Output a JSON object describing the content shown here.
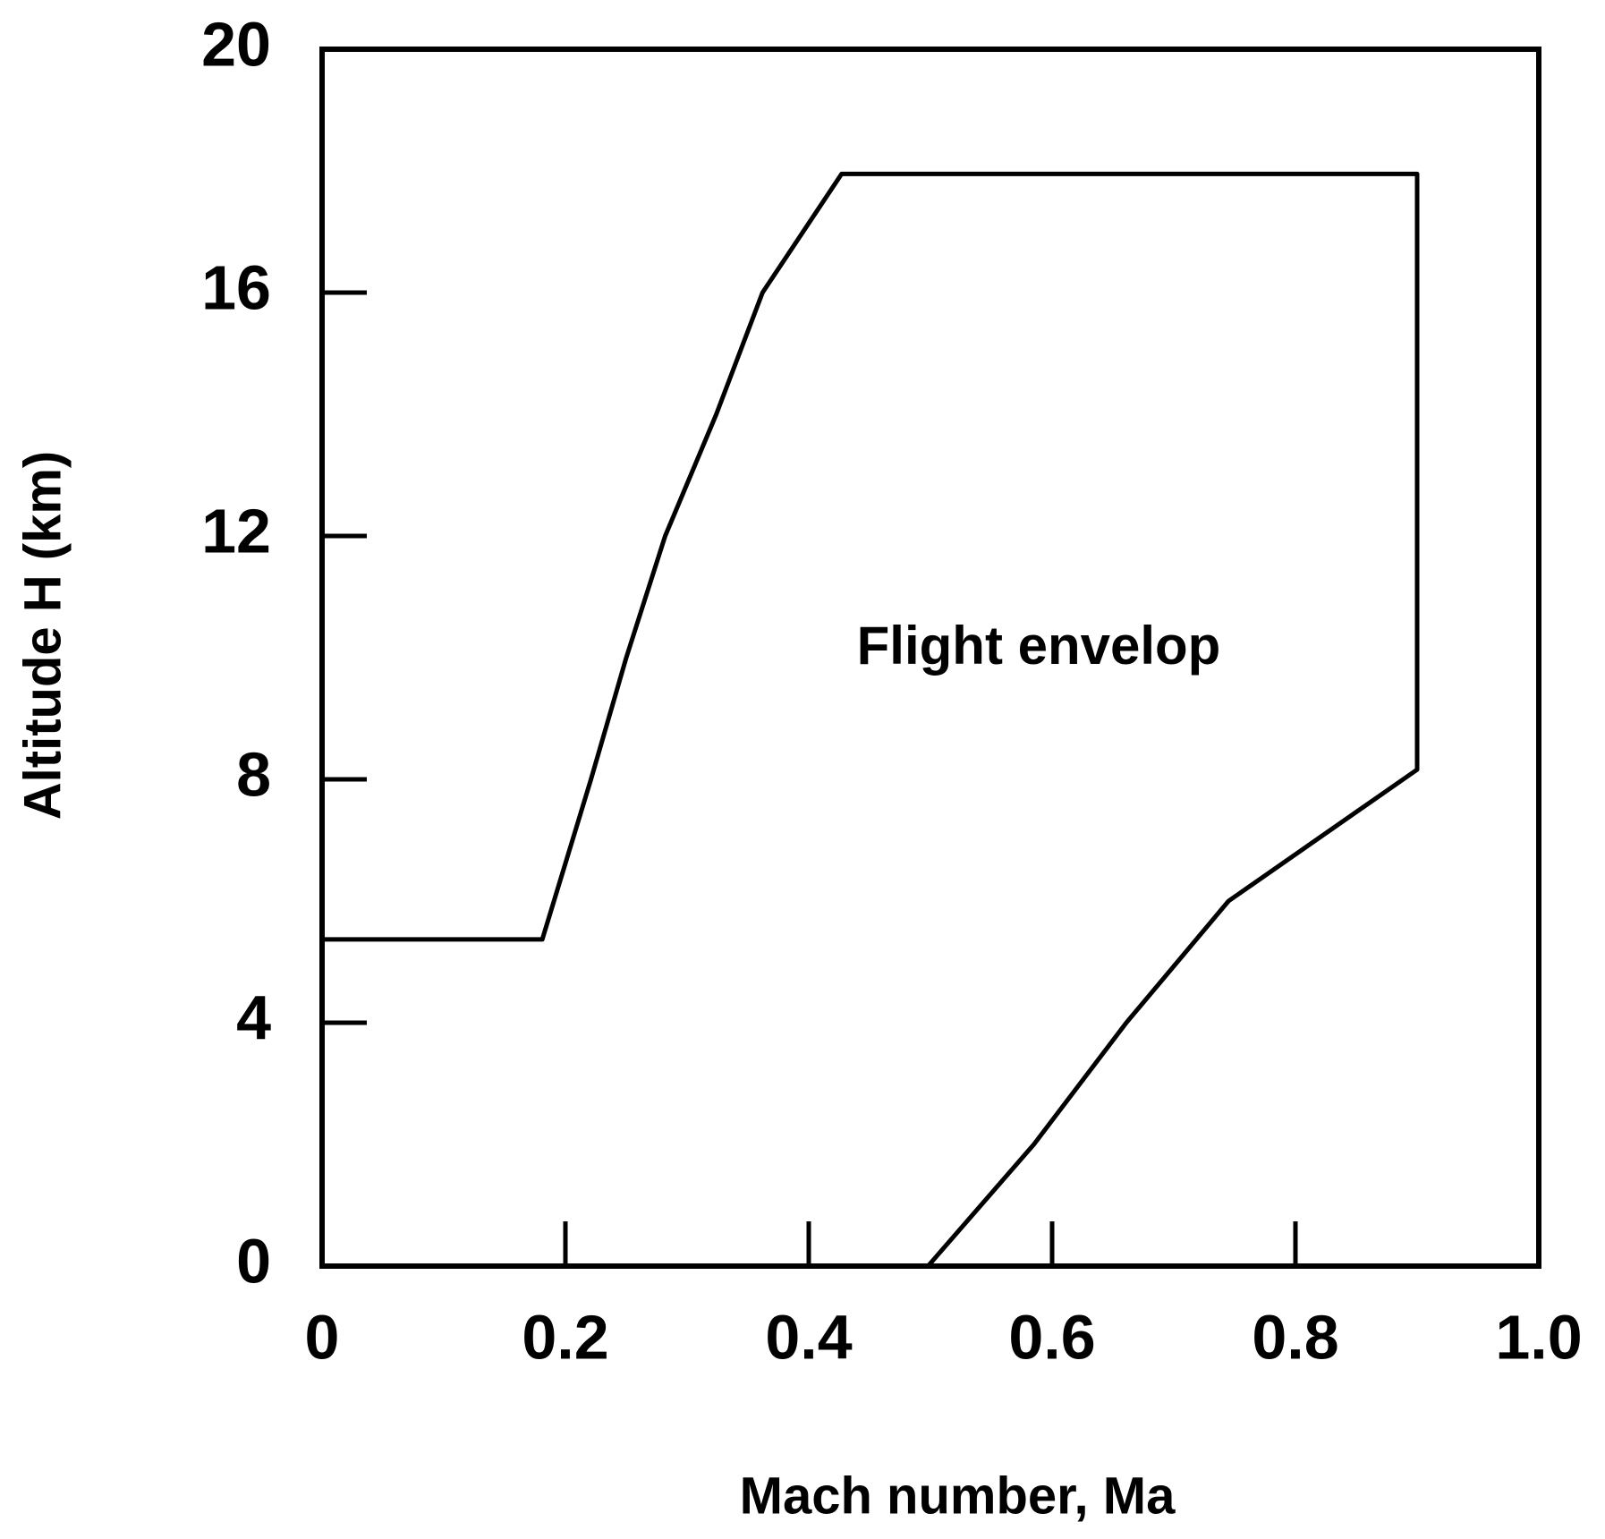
{
  "chart_data": {
    "type": "line",
    "x_label": "Mach number, Ma",
    "y_label": "Altitude H (km)",
    "annotation": "Flight envelop",
    "series": [
      {
        "color": "#000000",
        "x": [
          0,
          0.181,
          0.221,
          0.25,
          0.282,
          0.324,
          0.362,
          0.427,
          0.9,
          0.9,
          0.745,
          0.661,
          0.585,
          0.498
        ],
        "values": [
          5.37,
          5.37,
          8,
          10,
          12,
          14,
          16,
          17.95,
          17.95,
          8.16,
          6,
          4,
          2,
          0
        ]
      }
    ],
    "xlim": [
      0,
      1
    ],
    "ylim": [
      0,
      20
    ],
    "xticks": [
      0,
      0.2,
      0.4,
      0.6,
      0.8,
      {
        "value": 1,
        "label": "1.0"
      }
    ],
    "yticks": [
      0,
      4,
      8,
      12,
      16,
      20
    ]
  }
}
